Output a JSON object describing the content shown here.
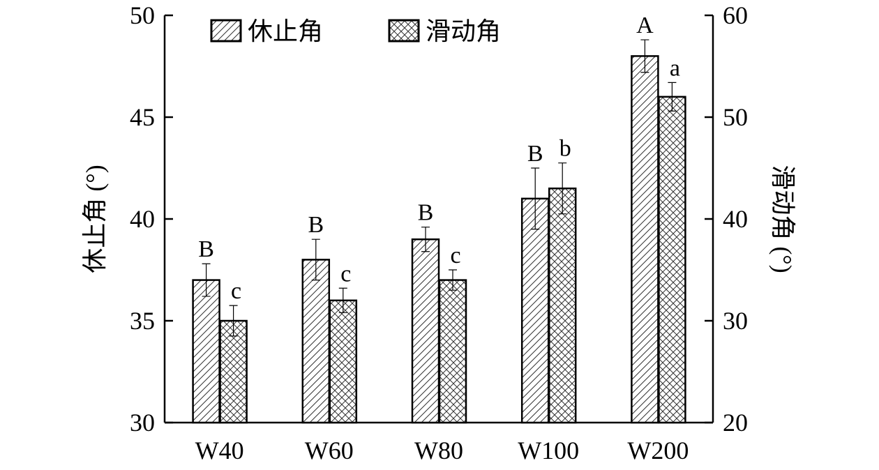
{
  "chart_data": {
    "type": "bar",
    "categories": [
      "W40",
      "W60",
      "W80",
      "W100",
      "W200"
    ],
    "series": [
      {
        "name": "休止角",
        "axis": "left",
        "pattern": "diagonal-hatch",
        "values": [
          37,
          38,
          39,
          41,
          48
        ],
        "errors": [
          0.8,
          1.0,
          0.6,
          1.5,
          0.8
        ],
        "letters": [
          "B",
          "B",
          "B",
          "B",
          "A"
        ]
      },
      {
        "name": "滑动角",
        "axis": "right",
        "pattern": "cross-hatch",
        "values": [
          30,
          32,
          34,
          43,
          52
        ],
        "errors": [
          1.5,
          1.2,
          1.0,
          2.5,
          1.4
        ],
        "letters": [
          "c",
          "c",
          "c",
          "b",
          "a"
        ]
      }
    ],
    "ylabel": "休止角 (°)",
    "y2label": "滑动角 (°)",
    "ylim": [
      30,
      50
    ],
    "yticks": [
      30,
      35,
      40,
      45,
      50
    ],
    "y2lim": [
      20,
      60
    ],
    "y2ticks": [
      20,
      30,
      40,
      50,
      60
    ],
    "legend": "top-left",
    "grid": false
  }
}
